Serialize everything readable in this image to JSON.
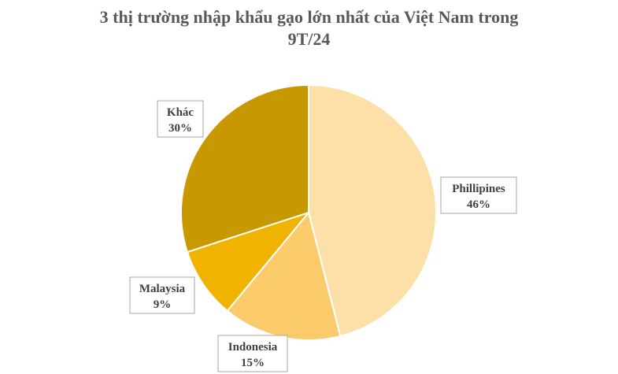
{
  "chart_data": {
    "type": "pie",
    "title_line1": "3 thị trường nhập khẩu gạo lớn nhất của Việt Nam trong",
    "title_line2": "9T/24",
    "slices": [
      {
        "label": "Phillipines",
        "value": 46,
        "value_label": "46%",
        "color": "#FDDFA8"
      },
      {
        "label": "Indonesia",
        "value": 15,
        "value_label": "15%",
        "color": "#FBCB6B"
      },
      {
        "label": "Malaysia",
        "value": 9,
        "value_label": "9%",
        "color": "#F0B400"
      },
      {
        "label": "Khác",
        "value": 30,
        "value_label": "30%",
        "color": "#C89800"
      }
    ]
  }
}
